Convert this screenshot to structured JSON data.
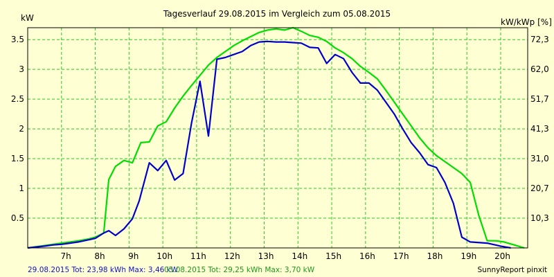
{
  "chart_data": {
    "type": "line",
    "title": "Tagesverlauf 29.08.2015 im Vergleich zum 05.08.2015",
    "ylabel_left": "kW",
    "ylabel_right": "kW/kWp [%]",
    "y_range": [
      0,
      3.7
    ],
    "y_ticks": [
      "0.5",
      "1",
      "1.5",
      "2",
      "2.5",
      "3",
      "3.5"
    ],
    "y_ticks_right": [
      "10,3",
      "20,7",
      "31,0",
      "41,3",
      "51,7",
      "62,0",
      "72,3"
    ],
    "x_ticks": [
      "7h",
      "8h",
      "9h",
      "10h",
      "11h",
      "12h",
      "13h",
      "14h",
      "15h",
      "16h",
      "17h",
      "18h",
      "19h",
      "20h"
    ],
    "x_range_hours": [
      6.0,
      20.8
    ],
    "grid": true,
    "series": [
      {
        "name": "29.08.2015",
        "color": "#0000cc",
        "points": [
          [
            6.0,
            0.0
          ],
          [
            6.5,
            0.03
          ],
          [
            6.75,
            0.05
          ],
          [
            7.0,
            0.06
          ],
          [
            7.25,
            0.08
          ],
          [
            7.5,
            0.1
          ],
          [
            7.75,
            0.13
          ],
          [
            8.0,
            0.16
          ],
          [
            8.25,
            0.25
          ],
          [
            8.4,
            0.29
          ],
          [
            8.6,
            0.21
          ],
          [
            8.85,
            0.32
          ],
          [
            9.1,
            0.49
          ],
          [
            9.3,
            0.79
          ],
          [
            9.6,
            1.43
          ],
          [
            9.85,
            1.3
          ],
          [
            10.1,
            1.47
          ],
          [
            10.35,
            1.14
          ],
          [
            10.6,
            1.25
          ],
          [
            10.85,
            2.1
          ],
          [
            11.1,
            2.8
          ],
          [
            11.35,
            1.88
          ],
          [
            11.6,
            3.17
          ],
          [
            11.85,
            3.2
          ],
          [
            12.1,
            3.25
          ],
          [
            12.35,
            3.3
          ],
          [
            12.6,
            3.4
          ],
          [
            12.85,
            3.46
          ],
          [
            13.1,
            3.47
          ],
          [
            13.35,
            3.46
          ],
          [
            13.6,
            3.46
          ],
          [
            13.85,
            3.45
          ],
          [
            14.1,
            3.44
          ],
          [
            14.35,
            3.37
          ],
          [
            14.6,
            3.36
          ],
          [
            14.85,
            3.1
          ],
          [
            15.1,
            3.25
          ],
          [
            15.35,
            3.18
          ],
          [
            15.6,
            2.95
          ],
          [
            15.85,
            2.77
          ],
          [
            16.1,
            2.77
          ],
          [
            16.35,
            2.65
          ],
          [
            16.6,
            2.45
          ],
          [
            16.85,
            2.25
          ],
          [
            17.1,
            2.0
          ],
          [
            17.35,
            1.77
          ],
          [
            17.6,
            1.6
          ],
          [
            17.85,
            1.4
          ],
          [
            18.1,
            1.35
          ],
          [
            18.35,
            1.1
          ],
          [
            18.6,
            0.75
          ],
          [
            18.85,
            0.18
          ],
          [
            19.1,
            0.1
          ],
          [
            19.6,
            0.08
          ],
          [
            20.0,
            0.03
          ],
          [
            20.3,
            0.0
          ]
        ]
      },
      {
        "name": "05.08.2015",
        "color": "#00dd00",
        "points": [
          [
            6.0,
            0.0
          ],
          [
            6.5,
            0.04
          ],
          [
            7.0,
            0.08
          ],
          [
            7.5,
            0.12
          ],
          [
            7.8,
            0.15
          ],
          [
            8.0,
            0.18
          ],
          [
            8.25,
            0.25
          ],
          [
            8.4,
            1.15
          ],
          [
            8.6,
            1.37
          ],
          [
            8.85,
            1.47
          ],
          [
            9.1,
            1.43
          ],
          [
            9.35,
            1.77
          ],
          [
            9.6,
            1.78
          ],
          [
            9.85,
            2.05
          ],
          [
            10.1,
            2.12
          ],
          [
            10.35,
            2.35
          ],
          [
            10.6,
            2.55
          ],
          [
            10.85,
            2.73
          ],
          [
            11.1,
            2.9
          ],
          [
            11.35,
            3.07
          ],
          [
            11.6,
            3.2
          ],
          [
            11.85,
            3.3
          ],
          [
            12.1,
            3.4
          ],
          [
            12.35,
            3.48
          ],
          [
            12.6,
            3.55
          ],
          [
            12.85,
            3.62
          ],
          [
            13.1,
            3.66
          ],
          [
            13.35,
            3.68
          ],
          [
            13.6,
            3.66
          ],
          [
            13.85,
            3.7
          ],
          [
            14.1,
            3.64
          ],
          [
            14.35,
            3.57
          ],
          [
            14.6,
            3.54
          ],
          [
            14.85,
            3.47
          ],
          [
            15.1,
            3.36
          ],
          [
            15.35,
            3.28
          ],
          [
            15.6,
            3.18
          ],
          [
            15.85,
            3.05
          ],
          [
            16.1,
            2.95
          ],
          [
            16.35,
            2.84
          ],
          [
            16.6,
            2.65
          ],
          [
            16.85,
            2.45
          ],
          [
            17.1,
            2.25
          ],
          [
            17.35,
            2.05
          ],
          [
            17.6,
            1.85
          ],
          [
            17.85,
            1.68
          ],
          [
            18.1,
            1.55
          ],
          [
            18.35,
            1.45
          ],
          [
            18.6,
            1.35
          ],
          [
            18.85,
            1.25
          ],
          [
            19.1,
            1.1
          ],
          [
            19.35,
            0.55
          ],
          [
            19.6,
            0.12
          ],
          [
            19.85,
            0.12
          ],
          [
            20.1,
            0.1
          ],
          [
            20.4,
            0.05
          ],
          [
            20.7,
            0.0
          ]
        ]
      }
    ]
  },
  "footer": {
    "series1_summary": "29.08.2015 Tot: 23,98 kWh Max: 3,46 kW",
    "series2_summary": "05.08.2015 Tot: 29,25 kWh Max: 3,70 kW",
    "brand": "SunnyReport pinxit"
  }
}
